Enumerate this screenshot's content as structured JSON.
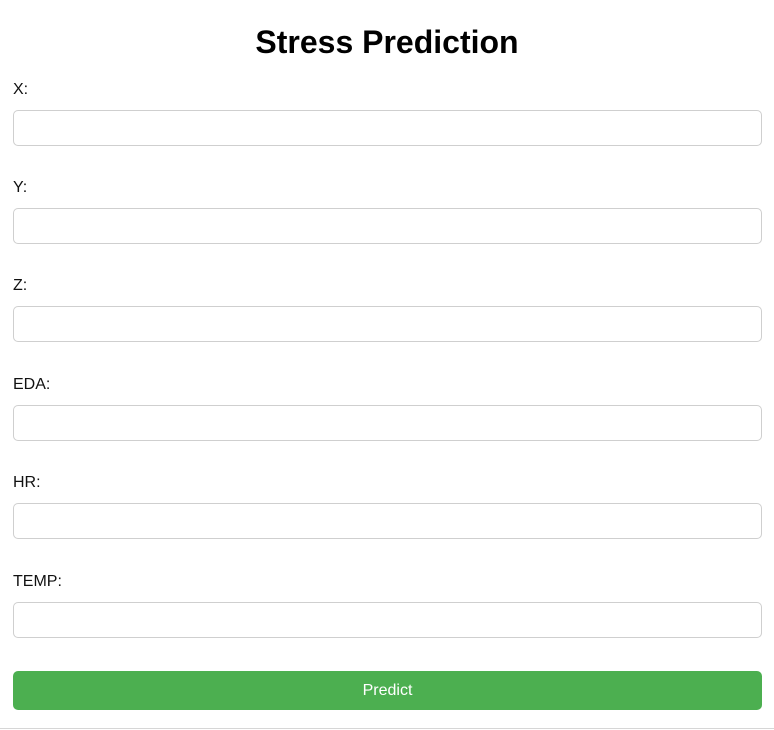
{
  "page": {
    "title": "Stress Prediction"
  },
  "form": {
    "fields": [
      {
        "label": "X:",
        "value": ""
      },
      {
        "label": "Y:",
        "value": ""
      },
      {
        "label": "Z:",
        "value": ""
      },
      {
        "label": "EDA:",
        "value": ""
      },
      {
        "label": "HR:",
        "value": ""
      },
      {
        "label": "TEMP:",
        "value": ""
      }
    ],
    "submit_label": "Predict"
  },
  "colors": {
    "accent": "#4caf50",
    "input_border": "#cfcfcf",
    "text": "#111111"
  }
}
